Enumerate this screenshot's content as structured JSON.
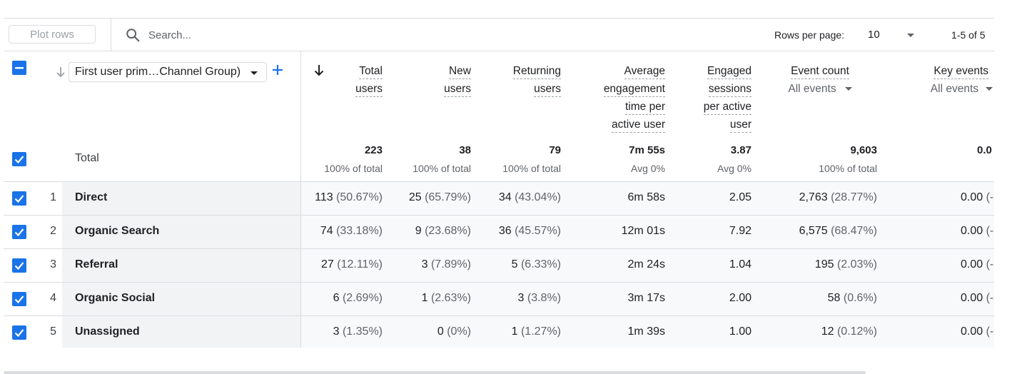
{
  "toolbar": {
    "plot_rows_label": "Plot rows",
    "search_placeholder": "Search...",
    "rows_per_page_label": "Rows per page:",
    "rows_per_page_value": "10",
    "pagination": "1-5 of 5"
  },
  "dimension": {
    "label": "First user prim…Channel Group)"
  },
  "columns": [
    {
      "lines": [
        "Total",
        "users"
      ]
    },
    {
      "lines": [
        "New",
        "users"
      ]
    },
    {
      "lines": [
        "Returning",
        "users"
      ]
    },
    {
      "lines": [
        "Average",
        "engagement",
        "time per",
        "active user"
      ]
    },
    {
      "lines": [
        "Engaged",
        "sessions",
        "per active",
        "user"
      ]
    },
    {
      "lines": [
        "Event count"
      ],
      "sub": "All events"
    },
    {
      "lines": [
        "Key events"
      ],
      "sub": "All events"
    }
  ],
  "totals": {
    "label": "Total",
    "values": [
      "223",
      "38",
      "79",
      "7m 55s",
      "3.87",
      "9,603",
      "0.0"
    ],
    "subs": [
      "100% of total",
      "100% of total",
      "100% of total",
      "Avg 0%",
      "Avg 0%",
      "100% of total",
      ""
    ]
  },
  "rows": [
    {
      "num": "1",
      "name": "Direct",
      "cells": [
        [
          "113",
          " (50.67%)"
        ],
        [
          "25",
          " (65.79%)"
        ],
        [
          "34",
          " (43.04%)"
        ],
        [
          "6m 58s",
          ""
        ],
        [
          "2.05",
          ""
        ],
        [
          "2,763",
          " (28.77%)"
        ],
        [
          "0.00",
          " (-"
        ]
      ]
    },
    {
      "num": "2",
      "name": "Organic Search",
      "cells": [
        [
          "74",
          " (33.18%)"
        ],
        [
          "9",
          " (23.68%)"
        ],
        [
          "36",
          " (45.57%)"
        ],
        [
          "12m 01s",
          ""
        ],
        [
          "7.92",
          ""
        ],
        [
          "6,575",
          " (68.47%)"
        ],
        [
          "0.00",
          " (-"
        ]
      ]
    },
    {
      "num": "3",
      "name": "Referral",
      "cells": [
        [
          "27",
          " (12.11%)"
        ],
        [
          "3",
          " (7.89%)"
        ],
        [
          "5",
          " (6.33%)"
        ],
        [
          "2m 24s",
          ""
        ],
        [
          "1.04",
          ""
        ],
        [
          "195",
          " (2.03%)"
        ],
        [
          "0.00",
          " (-"
        ]
      ]
    },
    {
      "num": "4",
      "name": "Organic Social",
      "cells": [
        [
          "6",
          " (2.69%)"
        ],
        [
          "1",
          " (2.63%)"
        ],
        [
          "3",
          " (3.8%)"
        ],
        [
          "3m 17s",
          ""
        ],
        [
          "2.00",
          ""
        ],
        [
          "58",
          " (0.6%)"
        ],
        [
          "0.00",
          " (-"
        ]
      ]
    },
    {
      "num": "5",
      "name": "Unassigned",
      "cells": [
        [
          "3",
          " (1.35%)"
        ],
        [
          "0",
          " (0%)"
        ],
        [
          "1",
          " (1.27%)"
        ],
        [
          "1m 39s",
          ""
        ],
        [
          "1.00",
          ""
        ],
        [
          "12",
          " (0.12%)"
        ],
        [
          "0.00",
          " (-"
        ]
      ]
    }
  ],
  "colors": {
    "accent": "#1a73e8",
    "border": "#dadce0",
    "muted": "#5f6368"
  },
  "icons": {
    "search": "search-icon",
    "checkbox_indeterminate": "checkbox-indeterminate-icon",
    "checkbox_checked": "checkbox-checked-icon",
    "sort": "arrow-down-icon",
    "add": "plus-icon",
    "dropdown": "caret-down-icon"
  }
}
